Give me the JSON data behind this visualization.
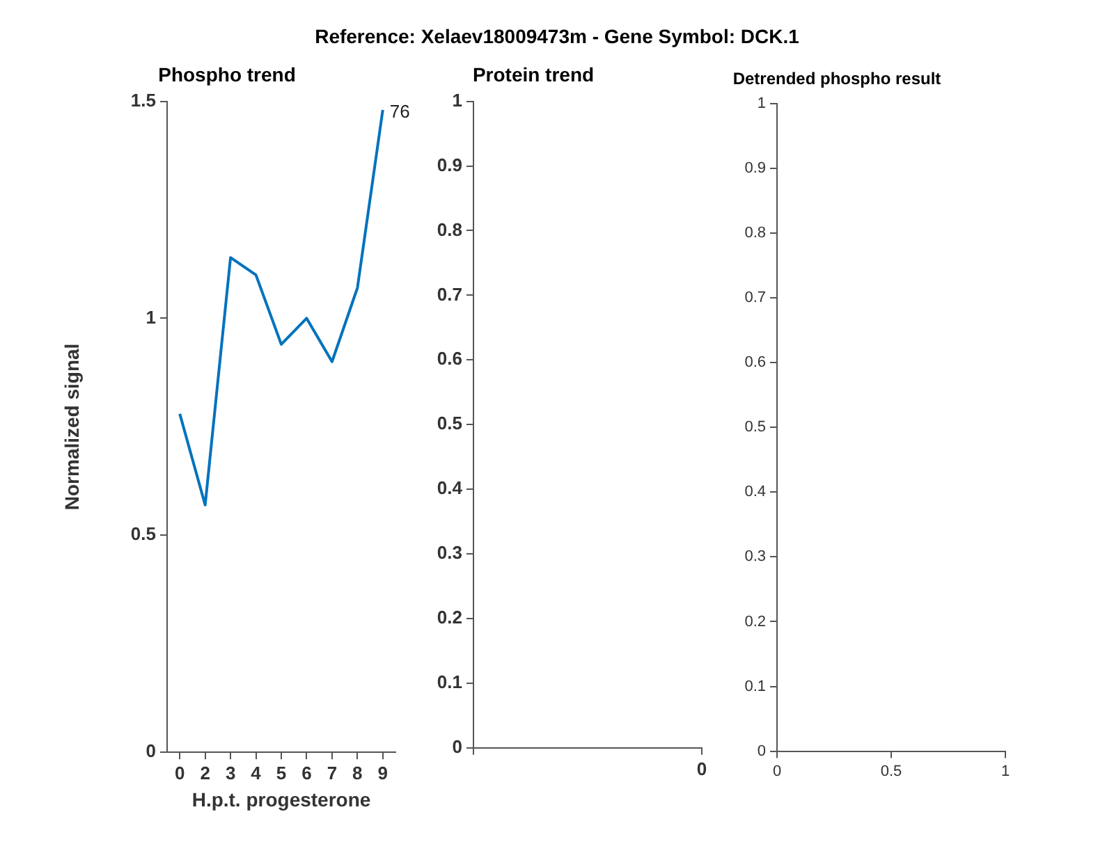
{
  "chart_data": [
    {
      "type": "line",
      "title": "Reference:  Xelaev18009473m - Gene Symbol:  DCK.1",
      "subtitle": "Phospho trend",
      "xlabel": "H.p.t. progesterone",
      "ylabel": "Normalized signal",
      "categories": [
        "0",
        "2",
        "3",
        "4",
        "5",
        "6",
        "7",
        "8",
        "9"
      ],
      "series": [
        {
          "color": "#0072bd",
          "values": [
            0.78,
            0.57,
            1.14,
            1.1,
            0.94,
            1.0,
            0.9,
            1.07,
            1.48
          ]
        }
      ],
      "ylim": [
        0,
        1.5
      ],
      "yticks": [
        0,
        0.5,
        1,
        1.5
      ],
      "grid": false,
      "legend": false,
      "marker": "none",
      "line_style": "solid",
      "annotations": [
        {
          "text": "76",
          "x": "9",
          "y": 1.48
        }
      ]
    },
    {
      "type": "line",
      "title": "Protein trend",
      "categories": [
        null,
        "0"
      ],
      "ylim": [
        0,
        1
      ],
      "yticks": [
        0,
        0.1,
        0.2,
        0.3,
        0.4,
        0.5,
        0.6,
        0.7,
        0.8,
        0.9,
        1
      ],
      "grid": false,
      "legend": false
    },
    {
      "type": "line",
      "title": "Detrended phospho result",
      "xlim": [
        0,
        1
      ],
      "xticks": [
        0,
        0.5,
        1
      ],
      "ylim": [
        0,
        1
      ],
      "yticks": [
        0,
        0.1,
        0.2,
        0.3,
        0.4,
        0.5,
        0.6,
        0.7,
        0.8,
        0.9,
        1
      ],
      "grid": false,
      "legend": false
    }
  ]
}
